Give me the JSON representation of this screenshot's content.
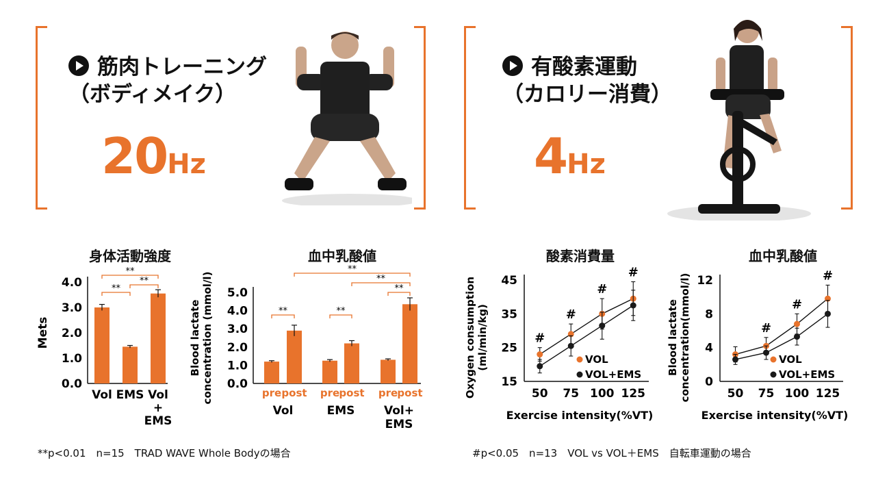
{
  "left_panel": {
    "title_line1": "筋肉トレーニング",
    "title_line2": "（ボディメイク）",
    "hz_number": "20",
    "hz_unit": "Hz"
  },
  "right_panel": {
    "title_line1": "有酸素運動",
    "title_line2": "（カロリー消費）",
    "hz_number": "4",
    "hz_unit": "Hz"
  },
  "colors": {
    "accent": "#e8732c",
    "dark": "#1a1a1a"
  },
  "chart_titles": [
    "身体活動強度",
    "血中乳酸値",
    "酸素消費量",
    "血中乳酸値"
  ],
  "chart_data": [
    {
      "type": "bar",
      "title": "身体活動強度",
      "ylabel": "Mets",
      "ylim": [
        0,
        4
      ],
      "yticks": [
        "0.0",
        "1.0",
        "2.0",
        "3.0",
        "4.0"
      ],
      "categories": [
        "Vol",
        "EMS",
        "Vol\n+\nEMS"
      ],
      "category_lines": [
        [
          "Vol"
        ],
        [
          "EMS"
        ],
        [
          "Vol",
          "+",
          "EMS"
        ]
      ],
      "values": [
        3.0,
        1.45,
        3.55
      ],
      "errors": [
        0.12,
        0.05,
        0.15
      ],
      "significance": [
        "**",
        "**",
        "**"
      ],
      "color": "#e8732c"
    },
    {
      "type": "bar",
      "title": "血中乳酸値",
      "ylabel_lines": [
        "Blood lactate",
        "concentration (mmol/l)"
      ],
      "ylim": [
        0,
        5
      ],
      "yticks": [
        "0.0",
        "1.0",
        "2.0",
        "3.0",
        "4.0",
        "5.0"
      ],
      "groups": [
        [
          "Vol"
        ],
        [
          "EMS"
        ],
        [
          "Vol+",
          "EMS"
        ]
      ],
      "sub_labels": [
        "pre",
        "post"
      ],
      "pre": [
        1.2,
        1.25,
        1.3
      ],
      "post": [
        2.9,
        2.2,
        4.35
      ],
      "pre_err": [
        0.05,
        0.06,
        0.05
      ],
      "post_err": [
        0.3,
        0.15,
        0.35
      ],
      "significance": [
        "**",
        "**",
        "**",
        "**",
        "**"
      ],
      "color": "#e8732c"
    },
    {
      "type": "line",
      "title": "酸素消費量",
      "ylabel_lines": [
        "Oxygen consumption",
        "(ml/min/kg)"
      ],
      "xlabel": "Exercise intensity(%VT)",
      "x": [
        50,
        75,
        100,
        125
      ],
      "ylim": [
        15,
        45
      ],
      "yticks": [
        "15",
        "25",
        "35",
        "45"
      ],
      "series": [
        {
          "name": "VOL",
          "values": [
            23,
            29,
            35,
            39.5
          ],
          "errors": [
            2,
            3,
            4.5,
            5
          ],
          "color": "#e8732c"
        },
        {
          "name": "VOL+EMS",
          "values": [
            19.5,
            25.5,
            31.5,
            37.5
          ],
          "errors": [
            2,
            3,
            4,
            4.5
          ],
          "color": "#1a1a1a"
        }
      ],
      "marks": [
        "#",
        "#",
        "#",
        "#"
      ]
    },
    {
      "type": "line",
      "title": "血中乳酸値",
      "ylabel_lines": [
        "Blood lactate",
        "concentration(mmol/l)"
      ],
      "xlabel": "Exercise intensity(%VT)",
      "x": [
        50,
        75,
        100,
        125
      ],
      "ylim": [
        0,
        12
      ],
      "yticks": [
        "0",
        "4",
        "8",
        "12"
      ],
      "series": [
        {
          "name": "VOL",
          "values": [
            3.2,
            4.2,
            6.8,
            9.8
          ],
          "errors": [
            0.9,
            1.0,
            1.2,
            1.6
          ],
          "color": "#e8732c"
        },
        {
          "name": "VOL+EMS",
          "values": [
            2.6,
            3.4,
            5.3,
            8.0
          ],
          "errors": [
            0.6,
            0.8,
            1.0,
            1.6
          ],
          "color": "#1a1a1a"
        }
      ],
      "marks": [
        "#",
        "#",
        "#"
      ]
    }
  ],
  "footnotes": {
    "left": "**p<0.01　n=15　TRAD WAVE Whole Bodyの場合",
    "right": "#p<0.05　n=13　VOL vs VOL＋EMS　自転車運動の場合"
  }
}
